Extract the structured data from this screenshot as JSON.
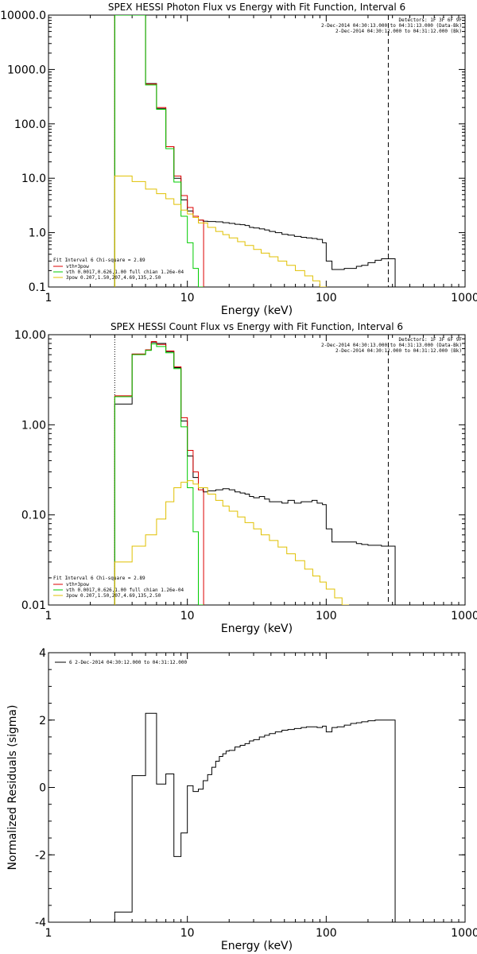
{
  "chart_data": [
    {
      "type": "line",
      "title": "SPEX HESSI Photon Flux vs Energy with Fit Function, Interval 6",
      "xlabel": "Energy (keV)",
      "ylabel": "",
      "xscale": "log",
      "yscale": "log",
      "xlim": [
        1,
        1000
      ],
      "ylim": [
        0.1,
        10000
      ],
      "xticks": [
        "1",
        "10",
        "100",
        "1000"
      ],
      "yticks": [
        "0.1",
        "1.0",
        "10.0",
        "100.0",
        "1000.0",
        "10000.0"
      ],
      "header": [
        "Detectors: 1F 3F 6F 9F",
        "2-Dec-2014 04:30:13.000 to 04:31:13.000 (Data-Bk)",
        "2-Dec-2014 04:30:12.000 to 04:31:12.000 (Bk)"
      ],
      "legend": {
        "position": "bottom-left",
        "title": "Fit Interval 6   Chi-square = 2.89",
        "entries": [
          {
            "label": "vth+3pow",
            "color": "#dd0000"
          },
          {
            "label": "vth 0.0017,0.626,1.00  full chian 1.26e-04",
            "color": "#00cc00"
          },
          {
            "label": "3pow 0.207,1.50,207,4.69,135,2.50",
            "color": "#e0c000"
          }
        ]
      },
      "vlines": [
        {
          "x": 3.0,
          "color": "#e0c000",
          "style": "dotted"
        },
        {
          "x": 280,
          "color": "#000000",
          "style": "dashed"
        }
      ],
      "series": [
        {
          "color": "#000000",
          "x": [
            3.0,
            4.0,
            5.0,
            6.0,
            7.0,
            8.0,
            9.0,
            10.0,
            11.0,
            12.0,
            13.0,
            14.0,
            16.0,
            18.0,
            20.0,
            22.0,
            24.0,
            26.0,
            28.0,
            30.0,
            33.0,
            36.0,
            39.0,
            43.0,
            48.0,
            53.0,
            59.0,
            66.0,
            72.0,
            79.0,
            86.0,
            94.0,
            100.0,
            110.0,
            120.0,
            135.0,
            150.0,
            165.0,
            180.0,
            200.0,
            225.0,
            250.0,
            280.0
          ],
          "y": [
            10000,
            10000,
            550,
            190,
            38,
            10,
            4.0,
            2.5,
            1.9,
            1.7,
            1.62,
            1.6,
            1.58,
            1.52,
            1.48,
            1.42,
            1.4,
            1.35,
            1.25,
            1.22,
            1.17,
            1.12,
            1.05,
            1.0,
            0.93,
            0.9,
            0.85,
            0.82,
            0.8,
            0.78,
            0.75,
            0.65,
            0.3,
            0.21,
            0.21,
            0.22,
            0.22,
            0.24,
            0.25,
            0.28,
            0.31,
            0.33,
            0.33
          ]
        },
        {
          "color": "#dd0000",
          "x": [
            3.0,
            4.0,
            5.0,
            6.0,
            7.0,
            8.0,
            9.0,
            10.0,
            11.0,
            12.0
          ],
          "y": [
            10000,
            10000,
            540,
            200,
            38,
            11,
            4.8,
            2.9,
            2.0,
            1.7
          ]
        },
        {
          "color": "#00cc00",
          "x": [
            3.0,
            4.0,
            5.0,
            6.0,
            7.0,
            8.0,
            9.0,
            10.0,
            11.0,
            12.0
          ],
          "y": [
            10000,
            10000,
            520,
            185,
            35,
            8.5,
            2.0,
            0.65,
            0.22,
            0.1
          ]
        },
        {
          "color": "#e0c000",
          "x": [
            3.0,
            4.0,
            5.0,
            6.0,
            7.0,
            8.0,
            9.0,
            10.0,
            11.0,
            12.0,
            14.0,
            16.0,
            18.0,
            20.0,
            23.0,
            26.0,
            30.0,
            34.0,
            39.0,
            45.0,
            52.0,
            60.0,
            70.0,
            80.0,
            90.0
          ],
          "y": [
            11,
            8.7,
            6.3,
            5.2,
            4.2,
            3.3,
            2.6,
            2.2,
            1.9,
            1.5,
            1.25,
            1.05,
            0.92,
            0.8,
            0.68,
            0.58,
            0.49,
            0.42,
            0.36,
            0.3,
            0.25,
            0.2,
            0.16,
            0.13,
            0.1
          ]
        }
      ]
    },
    {
      "type": "line",
      "title": "SPEX HESSI Count Flux vs Energy with Fit Function, Interval 6",
      "xlabel": "Energy (keV)",
      "ylabel": "",
      "xscale": "log",
      "yscale": "log",
      "xlim": [
        1,
        1000
      ],
      "ylim": [
        0.01,
        10
      ],
      "xticks": [
        "1",
        "10",
        "100",
        "1000"
      ],
      "yticks": [
        "0.01",
        "0.10",
        "1.00",
        "10.00"
      ],
      "header": [
        "Detectors: 1F 3F 6F 9F",
        "2-Dec-2014 04:30:13.000 to 04:31:13.000 (Data-Bk)",
        "2-Dec-2014 04:30:12.000 to 04:31:12.000 (Bk)"
      ],
      "legend": {
        "position": "bottom-left",
        "title": "Fit Interval 6   Chi-square = 2.89",
        "entries": [
          {
            "label": "vth+3pow",
            "color": "#dd0000"
          },
          {
            "label": "vth 0.0017,0.626,1.00  full chian 1.26e-04",
            "color": "#00cc00"
          },
          {
            "label": "3pow 0.207,1.50,207,4.69,135,2.50",
            "color": "#e0c000"
          }
        ]
      },
      "vlines": [
        {
          "x": 3.0,
          "color": "#000000",
          "style": "dotted"
        },
        {
          "x": 280,
          "color": "#000000",
          "style": "dashed"
        }
      ],
      "series": [
        {
          "color": "#000000",
          "x": [
            3.0,
            4.0,
            5.0,
            5.5,
            6.0,
            7.0,
            8.0,
            9.0,
            10.0,
            11.0,
            12.0,
            13.0,
            14.0,
            16.0,
            18.0,
            20.0,
            22.0,
            24.0,
            26.0,
            28.0,
            30.0,
            33.0,
            36.0,
            39.0,
            43.0,
            48.0,
            53.0,
            59.0,
            66.0,
            72.0,
            79.0,
            86.0,
            94.0,
            100.0,
            110.0,
            120.0,
            135.0,
            150.0,
            165.0,
            180.0,
            200.0,
            225.0,
            250.0,
            280.0
          ],
          "y": [
            1.7,
            6.1,
            6.8,
            8.2,
            8.0,
            6.5,
            4.3,
            1.1,
            0.45,
            0.26,
            0.2,
            0.18,
            0.185,
            0.19,
            0.195,
            0.19,
            0.18,
            0.175,
            0.17,
            0.16,
            0.155,
            0.16,
            0.15,
            0.14,
            0.14,
            0.135,
            0.145,
            0.135,
            0.14,
            0.14,
            0.145,
            0.135,
            0.13,
            0.07,
            0.05,
            0.05,
            0.05,
            0.05,
            0.048,
            0.047,
            0.046,
            0.046,
            0.045,
            0.045
          ]
        },
        {
          "color": "#dd0000",
          "x": [
            3.0,
            4.0,
            5.0,
            5.5,
            6.0,
            7.0,
            8.0,
            9.0,
            10.0,
            11.0,
            12.0
          ],
          "y": [
            2.1,
            6.1,
            6.8,
            8.4,
            7.8,
            6.6,
            4.4,
            1.2,
            0.52,
            0.3,
            0.19
          ]
        },
        {
          "color": "#00cc00",
          "x": [
            3.0,
            4.0,
            5.0,
            5.5,
            6.0,
            7.0,
            8.0,
            9.0,
            10.0,
            11.0,
            12.0
          ],
          "y": [
            2.05,
            6.0,
            6.7,
            7.9,
            7.4,
            6.3,
            4.2,
            0.95,
            0.2,
            0.065,
            0.01
          ]
        },
        {
          "color": "#e0c000",
          "x": [
            3.0,
            4.0,
            5.0,
            6.0,
            7.0,
            8.0,
            9.0,
            10.0,
            11.0,
            12.0,
            14.0,
            16.0,
            18.0,
            20.0,
            23.0,
            26.0,
            30.0,
            34.0,
            39.0,
            45.0,
            52.0,
            60.0,
            70.0,
            80.0,
            90.0,
            100.0,
            115.0,
            130.0,
            145.0
          ],
          "y": [
            0.03,
            0.045,
            0.06,
            0.09,
            0.14,
            0.2,
            0.23,
            0.24,
            0.22,
            0.2,
            0.17,
            0.145,
            0.125,
            0.11,
            0.095,
            0.082,
            0.07,
            0.06,
            0.052,
            0.044,
            0.037,
            0.031,
            0.025,
            0.021,
            0.018,
            0.015,
            0.012,
            0.01,
            0.009
          ]
        }
      ]
    },
    {
      "type": "line",
      "title": "",
      "xlabel": "Energy (keV)",
      "ylabel": "Normalized Residuals (sigma)",
      "xscale": "log",
      "yscale": "linear",
      "xlim": [
        1,
        1000
      ],
      "ylim": [
        -4,
        4
      ],
      "xticks": [
        "1",
        "10",
        "100",
        "1000"
      ],
      "yticks": [
        "-4",
        "-2",
        "0",
        "2",
        "4"
      ],
      "legend": {
        "position": "top-left",
        "entries": [
          {
            "label": "6  2-Dec-2014 04:30:12.000 to 04:31:12.000",
            "color": "#000000"
          }
        ]
      },
      "series": [
        {
          "color": "#000000",
          "x": [
            3.0,
            4.0,
            5.0,
            6.0,
            7.0,
            8.0,
            9.0,
            10.0,
            11.0,
            12.0,
            13.0,
            14.0,
            15.0,
            16.0,
            17.0,
            18.0,
            19.0,
            20.0,
            22.0,
            24.0,
            26.0,
            28.0,
            30.0,
            33.0,
            36.0,
            39.0,
            43.0,
            48.0,
            53.0,
            59.0,
            66.0,
            72.0,
            79.0,
            86.0,
            94.0,
            100.0,
            110.0,
            120.0,
            135.0,
            150.0,
            165.0,
            180.0,
            200.0,
            225.0,
            250.0,
            280.0
          ],
          "y": [
            -3.7,
            0.35,
            2.2,
            0.1,
            0.4,
            -2.05,
            -1.35,
            0.05,
            -0.12,
            -0.05,
            0.2,
            0.38,
            0.6,
            0.78,
            0.92,
            1.0,
            1.08,
            1.1,
            1.2,
            1.25,
            1.3,
            1.38,
            1.42,
            1.5,
            1.55,
            1.6,
            1.65,
            1.7,
            1.72,
            1.75,
            1.78,
            1.8,
            1.8,
            1.78,
            1.82,
            1.65,
            1.78,
            1.8,
            1.85,
            1.9,
            1.92,
            1.95,
            1.98,
            2.0,
            2.0,
            2.0
          ]
        }
      ]
    }
  ]
}
